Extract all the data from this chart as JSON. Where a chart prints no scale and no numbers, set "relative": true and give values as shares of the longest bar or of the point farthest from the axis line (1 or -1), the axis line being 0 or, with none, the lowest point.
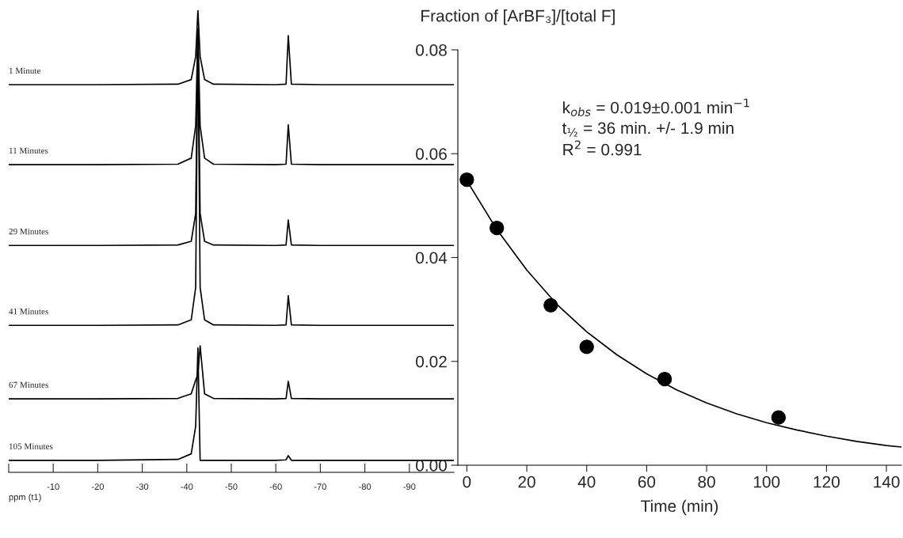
{
  "chart_data": [
    {
      "type": "line",
      "relative": true,
      "xlabel": "ppm (t1)",
      "xlim": [
        0,
        -100
      ],
      "tick_labels": "x",
      "xticks": [
        {
          "value": 0,
          "label": null
        },
        -10,
        -20,
        -30,
        -40,
        -50,
        -60,
        -70,
        -80,
        -90
      ],
      "x": [
        0,
        -20,
        -38,
        -41,
        -42,
        -42.5,
        -43,
        -44,
        -46,
        -60,
        -62.3,
        -62.8,
        -63.5,
        -70,
        -100
      ],
      "series": [
        {
          "name": "1 Minute",
          "color": "#000000",
          "values": [
            0.839,
            0.839,
            0.84,
            0.85,
            0.9,
            1.0,
            0.9,
            0.85,
            0.84,
            0.839,
            0.84,
            0.945,
            0.84,
            0.839,
            0.839
          ]
        },
        {
          "name": "11 Minutes",
          "color": "#000000",
          "values": [
            0.666,
            0.666,
            0.667,
            0.68,
            0.75,
            0.96,
            0.75,
            0.68,
            0.667,
            0.666,
            0.667,
            0.752,
            0.667,
            0.666,
            0.666
          ]
        },
        {
          "name": "29 Minutes",
          "color": "#000000",
          "values": [
            0.491,
            0.491,
            0.492,
            0.5,
            0.56,
            0.96,
            0.56,
            0.5,
            0.492,
            0.491,
            0.492,
            0.546,
            0.492,
            0.491,
            0.491
          ]
        },
        {
          "name": "41 Minutes",
          "color": "#000000",
          "values": [
            0.318,
            0.318,
            0.319,
            0.33,
            0.4,
            0.96,
            0.4,
            0.33,
            0.319,
            0.318,
            0.319,
            0.382,
            0.319,
            0.318,
            0.318
          ]
        },
        {
          "name": "67 Minutes",
          "color": "#000000",
          "values": [
            0.159,
            0.159,
            0.16,
            0.17,
            0.2,
            0.212,
            0.274,
            0.17,
            0.16,
            0.159,
            0.16,
            0.197,
            0.16,
            0.159,
            0.159
          ]
        },
        {
          "name": "105 Minutes",
          "color": "#000000",
          "values": [
            0.026,
            0.026,
            0.028,
            0.04,
            0.1,
            0.269,
            0.026,
            0.026,
            0.026,
            0.026,
            0.027,
            0.036,
            0.026,
            0.026,
            0.026
          ]
        }
      ]
    },
    {
      "type": "scatter",
      "ylabel": "Fraction of [ArBF₃]/[total F]",
      "xlabel": "Time (min)",
      "xlim": [
        -3,
        145
      ],
      "xticks": [
        0,
        20,
        40,
        60,
        80,
        100,
        120,
        140
      ],
      "ylim": [
        0,
        0.08
      ],
      "yticks": [
        {
          "value": 0,
          "label": "0.00"
        },
        {
          "value": 0.02,
          "label": "0.02"
        },
        {
          "value": 0.04,
          "label": "0.04"
        },
        {
          "value": 0.06,
          "label": "0.06"
        },
        {
          "value": 0.08,
          "label": "0.08"
        }
      ],
      "grid": false,
      "legend": false,
      "annotations": [
        "k$_{obs}$ = 0.019±0.001 min$^{−1}$",
        "t$_{½}$ = 36 min. +/- 1.9 min",
        "R$^{2}$ = 0.991"
      ],
      "series": [
        {
          "type": "scatter",
          "marker": "circle",
          "color": "#000000",
          "x": [
            0,
            10,
            28,
            40,
            66,
            104
          ],
          "values": [
            0.055,
            0.0457,
            0.0308,
            0.0228,
            0.0166,
            0.0092
          ]
        },
        {
          "type": "line",
          "marker": "none",
          "color": "#000000",
          "x": [
            0,
            10,
            20,
            30,
            40,
            50,
            60,
            70,
            80,
            90,
            100,
            110,
            120,
            130,
            140,
            145
          ],
          "values": [
            0.0548,
            0.0454,
            0.0376,
            0.031,
            0.0257,
            0.0213,
            0.0176,
            0.0145,
            0.012,
            0.0099,
            0.0082,
            0.0068,
            0.0056,
            0.0046,
            0.0038,
            0.0035
          ]
        }
      ]
    }
  ]
}
